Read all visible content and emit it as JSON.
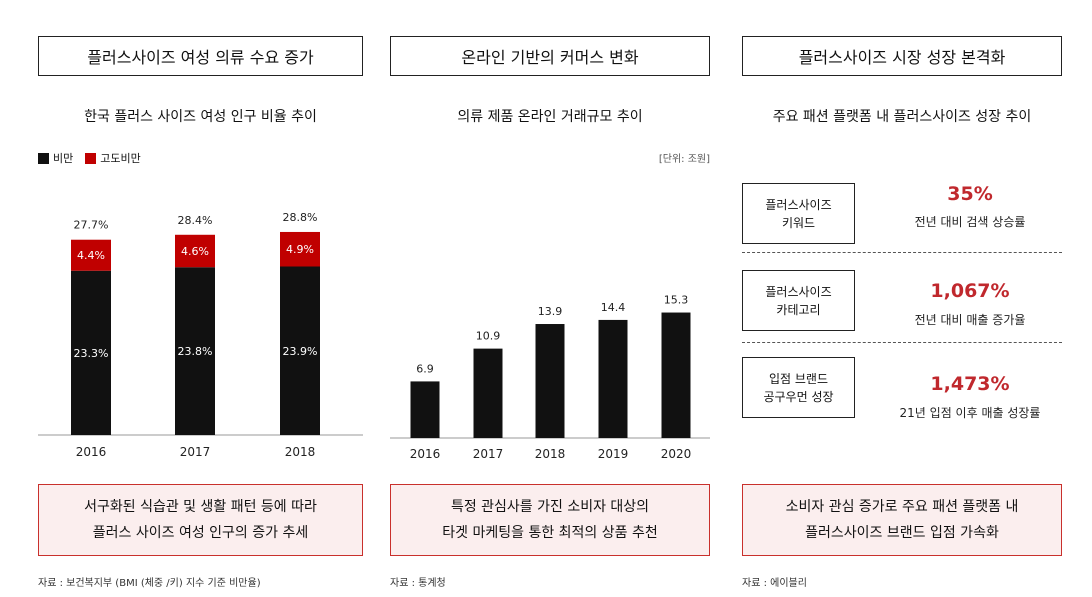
{
  "colors": {
    "obese": "#111111",
    "severe": "#c00000",
    "accent": "#c0282d",
    "caption_bg": "#fbeeee"
  },
  "sections": [
    {
      "header": "플러스사이즈 여성 의류 수요 증가",
      "subtitle": "한국 플러스 사이즈 여성 인구 비율 추이",
      "caption_line1": "서구화된 식습관 및 생활 패턴 등에 따라",
      "caption_line2": "플러스 사이즈 여성 인구의 증가 추세",
      "source": "자료 : 보건복지부 (BMI (체중 /키) 지수 기준 비만율)"
    },
    {
      "header": "온라인 기반의 커머스 변화",
      "subtitle": "의류 제품 온라인 거래규모 추이",
      "unit": "[단위: 조원]",
      "caption_line1": "특정 관심사를 가진 소비자 대상의",
      "caption_line2": "타겟 마케팅을 통한 최적의 상품 추천",
      "source": "자료 : 통계청"
    },
    {
      "header": "플러스사이즈 시장 성장 본격화",
      "subtitle": "주요 패션 플랫폼 내 플러스사이즈 성장 추이",
      "caption_line1": "소비자 관심 증가로 주요 패션 플랫폼 내",
      "caption_line2": "플러스사이즈 브랜드 입점 가속화",
      "source": "자료 : 에이블리"
    }
  ],
  "legend": {
    "obese": "비만",
    "severe": "고도비만"
  },
  "chart_data": [
    {
      "type": "bar",
      "stacked": true,
      "categories": [
        "2016",
        "2017",
        "2018"
      ],
      "series": [
        {
          "name": "비만",
          "values": [
            23.3,
            23.8,
            23.9
          ],
          "labels": [
            "23.3%",
            "23.8%",
            "23.9%"
          ]
        },
        {
          "name": "고도비만",
          "values": [
            4.4,
            4.6,
            4.9
          ],
          "labels": [
            "4.4%",
            "4.6%",
            "4.9%"
          ]
        }
      ],
      "totals": [
        "27.7%",
        "28.4%",
        "28.8%"
      ],
      "title": "한국 플러스 사이즈 여성 인구 비율 추이",
      "legend_position": "top-left",
      "grid": false
    },
    {
      "type": "bar",
      "categories": [
        "2016",
        "2017",
        "2018",
        "2019",
        "2020"
      ],
      "values": [
        6.9,
        10.9,
        13.9,
        14.4,
        15.3
      ],
      "labels": [
        "6.9",
        "10.9",
        "13.9",
        "14.4",
        "15.3"
      ],
      "title": "의류 제품 온라인 거래규모 추이",
      "unit": "[단위: 조원]",
      "grid": false
    }
  ],
  "kpis": [
    {
      "box_line1": "플러스사이즈",
      "box_line2": "키워드",
      "value": "35%",
      "desc": "전년 대비 검색 상승률"
    },
    {
      "box_line1": "플러스사이즈",
      "box_line2": "카테고리",
      "value": "1,067%",
      "desc": "전년 대비 매출 증가율"
    },
    {
      "box_line1": "입점 브랜드",
      "box_line2": "공구우먼 성장",
      "value": "1,473%",
      "desc": "21년 입점 이후 매출 성장률"
    }
  ]
}
